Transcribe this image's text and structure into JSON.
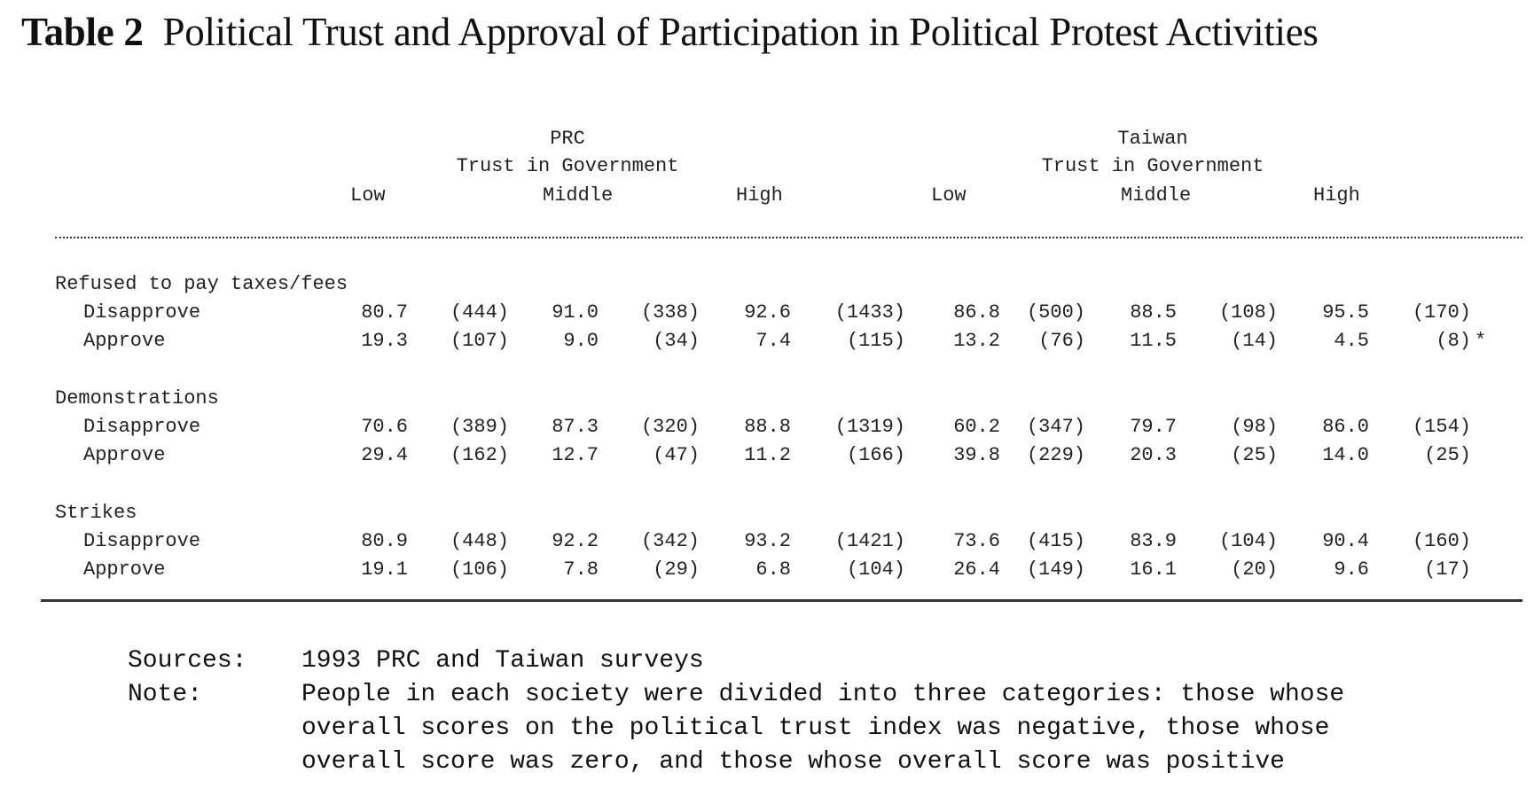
{
  "title": {
    "number": "Table 2",
    "text": "Political Trust and Approval of Participation in Political Protest Activities"
  },
  "groups": [
    {
      "country": "PRC",
      "subtitle": "Trust in Government"
    },
    {
      "country": "Taiwan",
      "subtitle": "Trust in Government"
    }
  ],
  "levels": [
    "Low",
    "Middle",
    "High"
  ],
  "sections": [
    {
      "label": "Refused to pay taxes/fees",
      "rows": [
        {
          "label": "Disapprove",
          "cells": [
            "80.7",
            "(444)",
            "91.0",
            "(338)",
            "92.6",
            "(1433)",
            "86.8",
            "(500)",
            "88.5",
            "(108)",
            "95.5",
            "(170)"
          ],
          "mark": ""
        },
        {
          "label": "Approve",
          "cells": [
            "19.3",
            "(107)",
            "9.0",
            "(34)",
            "7.4",
            "(115)",
            "13.2",
            "(76)",
            "11.5",
            "(14)",
            "4.5",
            "(8)"
          ],
          "mark": "*"
        }
      ]
    },
    {
      "label": "Demonstrations",
      "rows": [
        {
          "label": "Disapprove",
          "cells": [
            "70.6",
            "(389)",
            "87.3",
            "(320)",
            "88.8",
            "(1319)",
            "60.2",
            "(347)",
            "79.7",
            "(98)",
            "86.0",
            "(154)"
          ],
          "mark": ""
        },
        {
          "label": "Approve",
          "cells": [
            "29.4",
            "(162)",
            "12.7",
            "(47)",
            "11.2",
            "(166)",
            "39.8",
            "(229)",
            "20.3",
            "(25)",
            "14.0",
            "(25)"
          ],
          "mark": ""
        }
      ]
    },
    {
      "label": "Strikes",
      "rows": [
        {
          "label": "Disapprove",
          "cells": [
            "80.9",
            "(448)",
            "92.2",
            "(342)",
            "93.2",
            "(1421)",
            "73.6",
            "(415)",
            "83.9",
            "(104)",
            "90.4",
            "(160)"
          ],
          "mark": ""
        },
        {
          "label": "Approve",
          "cells": [
            "19.1",
            "(106)",
            "7.8",
            "(29)",
            "6.8",
            "(104)",
            "26.4",
            "(149)",
            "16.1",
            "(20)",
            "9.6",
            "(17)"
          ],
          "mark": ""
        }
      ]
    }
  ],
  "footnotes": {
    "sources_label": "Sources:",
    "sources_text": "1993 PRC and Taiwan surveys",
    "note_label": "Note:",
    "note_lines": [
      "People in each society were divided into three categories: those whose",
      "overall scores on the political trust index was negative, those whose",
      "overall score was zero, and those whose overall score was positive"
    ]
  },
  "colors": {
    "text": "#111111",
    "rule": "#333333"
  }
}
